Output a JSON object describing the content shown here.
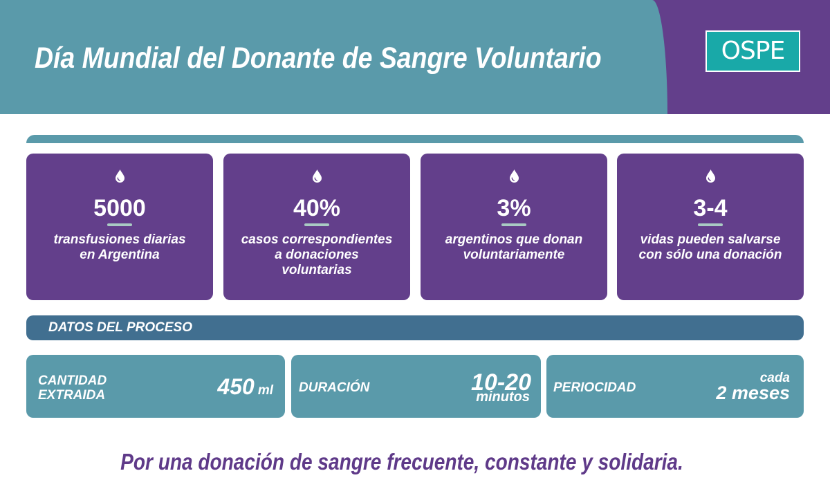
{
  "header": {
    "title": "Día Mundial del Donante de Sangre Voluntario",
    "logo_text": "OSPE"
  },
  "stats": [
    {
      "icon": "blood-drop-icon",
      "value": "5000",
      "description": [
        "transfusiones diarias",
        "en Argentina"
      ]
    },
    {
      "icon": "blood-drop-icon",
      "value": "40%",
      "description": [
        "casos correspondientes",
        "a donaciones",
        "voluntarias"
      ]
    },
    {
      "icon": "blood-drop-icon",
      "value": "3%",
      "description": [
        "argentinos que donan",
        "voluntariamente"
      ]
    },
    {
      "icon": "blood-drop-icon",
      "value": "3-4",
      "description": [
        "vidas pueden salvarse",
        "con sólo una donación"
      ]
    }
  ],
  "process": {
    "heading": "DATOS DEL PROCESO",
    "items": [
      {
        "label": [
          "CANTIDAD",
          "EXTRAIDA"
        ],
        "value": "450",
        "unit": "ml"
      },
      {
        "label": [
          "DURACIÓN"
        ],
        "value": "10-20",
        "unit": "minutos"
      },
      {
        "label": [
          "PERIOCIDAD"
        ],
        "prefix": "cada",
        "value": "2 meses"
      }
    ]
  },
  "footer": {
    "tagline": "Por una donación de sangre frecuente, constante y solidaria."
  },
  "colors": {
    "header_teal": "#5a9aaa",
    "brand_purple": "#633f8b",
    "process_bar": "#416f90",
    "logo_teal": "#19a9a8",
    "accent_underline": "#a9cbc3",
    "footer_purple": "#5f3a89"
  }
}
